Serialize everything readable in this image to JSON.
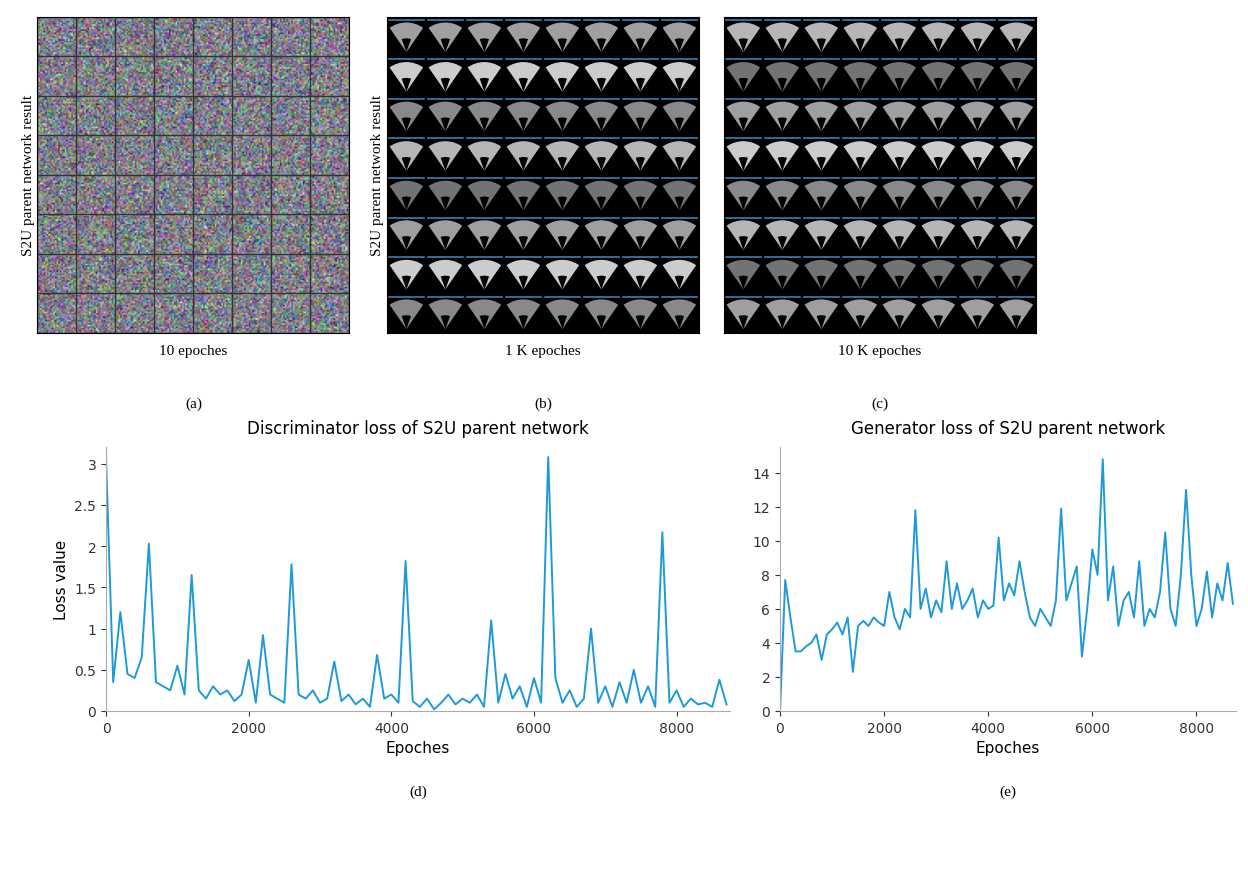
{
  "image_panels": [
    {
      "ylabel": "S2U parent network result",
      "xlabel": "10 epoches",
      "sublabel": "(a)"
    },
    {
      "ylabel": "S2U parent network result",
      "xlabel": "1 K epoches",
      "sublabel": "(b)"
    },
    {
      "xlabel": "10 K epoches",
      "sublabel": "(c)"
    }
  ],
  "chart_data": [
    {
      "type": "line",
      "title": "Discriminator loss of S2U parent network",
      "x_label": "Epoches",
      "y_label": "Loss value",
      "sublabel": "(d)",
      "color": "#1f9ad6",
      "xlim": [
        0,
        8750
      ],
      "xticks": [
        0,
        2000,
        4000,
        6000,
        8000
      ],
      "ylim": [
        0,
        3.2
      ],
      "yticks": [
        0,
        0.5,
        1,
        1.5,
        2,
        2.5,
        3
      ],
      "grid": false,
      "x": [
        0,
        100,
        200,
        300,
        400,
        500,
        600,
        700,
        800,
        900,
        1000,
        1100,
        1200,
        1300,
        1400,
        1500,
        1600,
        1700,
        1800,
        1900,
        2000,
        2100,
        2200,
        2300,
        2400,
        2500,
        2600,
        2700,
        2800,
        2900,
        3000,
        3100,
        3200,
        3300,
        3400,
        3500,
        3600,
        3700,
        3800,
        3900,
        4000,
        4100,
        4200,
        4300,
        4400,
        4500,
        4600,
        4700,
        4800,
        4900,
        5000,
        5100,
        5200,
        5300,
        5400,
        5500,
        5600,
        5700,
        5800,
        5900,
        6000,
        6100,
        6200,
        6300,
        6400,
        6500,
        6600,
        6700,
        6800,
        6900,
        7000,
        7100,
        7200,
        7300,
        7400,
        7500,
        7600,
        7700,
        7800,
        7900,
        8000,
        8100,
        8200,
        8300,
        8400,
        8500,
        8600,
        8700
      ],
      "values": [
        3.05,
        0.35,
        1.2,
        0.45,
        0.4,
        0.65,
        2.03,
        0.35,
        0.3,
        0.25,
        0.55,
        0.2,
        1.65,
        0.25,
        0.15,
        0.3,
        0.2,
        0.25,
        0.12,
        0.2,
        0.62,
        0.1,
        0.92,
        0.2,
        0.15,
        0.1,
        1.78,
        0.2,
        0.15,
        0.25,
        0.1,
        0.15,
        0.6,
        0.12,
        0.2,
        0.08,
        0.15,
        0.05,
        0.68,
        0.15,
        0.2,
        0.1,
        1.82,
        0.12,
        0.05,
        0.15,
        0.02,
        0.1,
        0.2,
        0.08,
        0.15,
        0.1,
        0.2,
        0.05,
        1.1,
        0.1,
        0.45,
        0.15,
        0.3,
        0.05,
        0.4,
        0.1,
        3.08,
        0.4,
        0.1,
        0.25,
        0.05,
        0.15,
        1.0,
        0.1,
        0.3,
        0.05,
        0.35,
        0.1,
        0.5,
        0.1,
        0.3,
        0.05,
        2.17,
        0.1,
        0.25,
        0.05,
        0.15,
        0.08,
        0.1,
        0.05,
        0.38,
        0.08
      ]
    },
    {
      "type": "line",
      "title": "Generator loss of S2U parent network",
      "x_label": "Epoches",
      "sublabel": "(e)",
      "color": "#1f9ad6",
      "xlim": [
        0,
        8750
      ],
      "xticks": [
        0,
        2000,
        4000,
        6000,
        8000
      ],
      "ylim": [
        0,
        15.5
      ],
      "yticks": [
        0,
        2,
        4,
        6,
        8,
        10,
        12,
        14
      ],
      "grid": false,
      "x": [
        0,
        100,
        200,
        300,
        400,
        500,
        600,
        700,
        800,
        900,
        1000,
        1100,
        1200,
        1300,
        1400,
        1500,
        1600,
        1700,
        1800,
        1900,
        2000,
        2100,
        2200,
        2300,
        2400,
        2500,
        2600,
        2700,
        2800,
        2900,
        3000,
        3100,
        3200,
        3300,
        3400,
        3500,
        3600,
        3700,
        3800,
        3900,
        4000,
        4100,
        4200,
        4300,
        4400,
        4500,
        4600,
        4700,
        4800,
        4900,
        5000,
        5100,
        5200,
        5300,
        5400,
        5500,
        5600,
        5700,
        5800,
        5900,
        6000,
        6100,
        6200,
        6300,
        6400,
        6500,
        6600,
        6700,
        6800,
        6900,
        7000,
        7100,
        7200,
        7300,
        7400,
        7500,
        7600,
        7700,
        7800,
        7900,
        8000,
        8100,
        8200,
        8300,
        8400,
        8500,
        8600,
        8700
      ],
      "values": [
        0,
        7.7,
        5.5,
        3.5,
        3.5,
        3.8,
        4.0,
        4.5,
        3.0,
        4.5,
        4.8,
        5.2,
        4.5,
        5.5,
        2.3,
        5.0,
        5.3,
        5.0,
        5.5,
        5.2,
        5.0,
        7.0,
        5.5,
        4.8,
        6.0,
        5.5,
        11.8,
        6.0,
        7.2,
        5.5,
        6.5,
        5.8,
        8.8,
        6.0,
        7.5,
        6.0,
        6.5,
        7.2,
        5.5,
        6.5,
        6.0,
        6.2,
        10.2,
        6.5,
        7.5,
        6.8,
        8.8,
        7.0,
        5.5,
        5.0,
        6.0,
        5.5,
        5.0,
        6.5,
        11.9,
        6.5,
        7.5,
        8.5,
        3.2,
        6.0,
        9.5,
        8.0,
        14.8,
        6.5,
        8.5,
        5.0,
        6.5,
        7.0,
        5.5,
        8.8,
        5.0,
        6.0,
        5.5,
        7.0,
        10.5,
        6.0,
        5.0,
        8.0,
        13.0,
        8.0,
        5.0,
        6.0,
        8.2,
        5.5,
        7.5,
        6.5,
        8.7,
        6.3
      ]
    }
  ]
}
